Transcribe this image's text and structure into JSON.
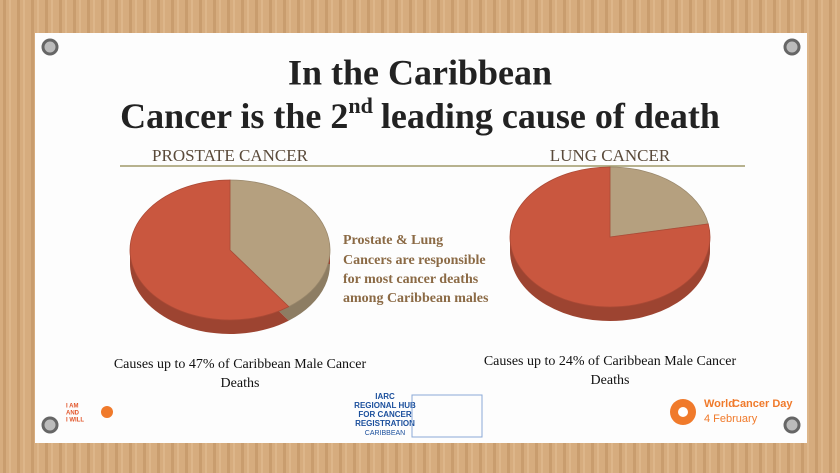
{
  "title": {
    "line1": "In the Caribbean",
    "line2": "Cancer is the 2",
    "line2_sup": "nd",
    "line2_end": "leading cause of death"
  },
  "chart_data": [
    {
      "type": "pie",
      "title": "PROSTATE CANCER",
      "categories": [
        null,
        null
      ],
      "values": [
        40,
        60
      ],
      "colors": [
        "#b5a07f",
        "#c9573f"
      ],
      "caption": [
        "Causes up to 47% of Caribbean Male Cancer",
        "Deaths"
      ]
    },
    {
      "type": "pie",
      "title": "LUNG CANCER",
      "categories": [
        null,
        null
      ],
      "values": [
        22,
        78
      ],
      "colors": [
        "#b5a07f",
        "#c9573f"
      ],
      "caption": [
        "Causes up to 24% of Caribbean Male Cancer",
        "Deaths"
      ]
    }
  ],
  "middle_text": [
    "Prostate & Lung",
    "Cancers are responsible",
    "for most cancer deaths",
    "among Caribbean males"
  ],
  "logos": {
    "iarc": [
      "IARC",
      "REGIONAL HUB",
      "FOR CANCER",
      "REGISTRATION",
      "CARIBBEAN"
    ],
    "wcd": [
      "World",
      "Cancer Day",
      "4 February"
    ],
    "left": [
      "I AM",
      "AND",
      "I WILL"
    ]
  }
}
